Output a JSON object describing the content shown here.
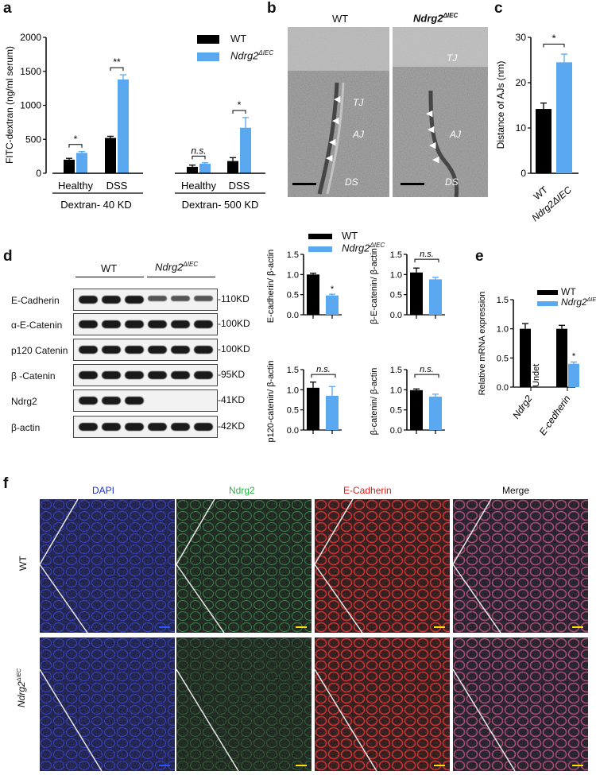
{
  "colors": {
    "wt": "#000000",
    "ko": "#5aa8f0",
    "dapi": "#1b2fd6",
    "ndrg2": "#27b341",
    "ecad": "#e01818",
    "merge": "#111111"
  },
  "panel_letters": {
    "a": "a",
    "b": "b",
    "c": "c",
    "d": "d",
    "e": "e",
    "f": "f"
  },
  "legend": {
    "wt": "WT",
    "ko_base": "Ndrg2",
    "ko_sup": "ΔIEC"
  },
  "chart_data": [
    {
      "id": "a",
      "type": "bar",
      "ylabel": "FITC-dextran (ng/ml serum)",
      "ylim": [
        0,
        2000
      ],
      "yticks": [
        0,
        500,
        1000,
        1500,
        2000
      ],
      "categories": [
        "Healthy",
        "DSS",
        "Healthy",
        "DSS"
      ],
      "groups": [
        "Dextran- 40 KD",
        "Dextran- 500 KD"
      ],
      "series": [
        {
          "name": "WT",
          "values": [
            200,
            520,
            95,
            180
          ],
          "errors": [
            20,
            25,
            25,
            50
          ]
        },
        {
          "name": "Ndrg2ΔIEC",
          "values": [
            300,
            1380,
            140,
            670
          ],
          "errors": [
            20,
            70,
            15,
            150
          ]
        }
      ],
      "significance": [
        "*",
        "**",
        "n.s.",
        "*"
      ]
    },
    {
      "id": "c",
      "type": "bar",
      "ylabel": "Distance of AJs (nm)",
      "ylim": [
        0,
        30
      ],
      "yticks": [
        0,
        10,
        20,
        30
      ],
      "categories": [
        "WT",
        "Ndrg2ΔIEC"
      ],
      "values": [
        14.2,
        24.5
      ],
      "errors": [
        1.3,
        1.8
      ],
      "significance": [
        "*"
      ]
    },
    {
      "id": "d1",
      "type": "bar",
      "ylabel": "E-cadherin/ β-actin",
      "ylim": [
        0,
        1.5
      ],
      "yticks": [
        "0.0",
        "0.5",
        "1.0",
        "1.5"
      ],
      "values": [
        1.0,
        0.48
      ],
      "errors": [
        0.03,
        0.03
      ],
      "significance": [
        "*"
      ]
    },
    {
      "id": "d2",
      "type": "bar",
      "ylabel": "β-E-catenin/ β-actin",
      "ylim": [
        0,
        1.5
      ],
      "yticks": [
        "0.0",
        "0.5",
        "1.0",
        "1.5"
      ],
      "values": [
        1.05,
        0.88
      ],
      "errors": [
        0.11,
        0.05
      ],
      "significance": [
        "n.s."
      ]
    },
    {
      "id": "d3",
      "type": "bar",
      "ylabel": "p120-catenin/ β-actin",
      "ylim": [
        0,
        1.5
      ],
      "yticks": [
        "0.0",
        "0.5",
        "1.0",
        "1.5"
      ],
      "values": [
        1.05,
        0.85
      ],
      "errors": [
        0.14,
        0.23
      ],
      "significance": [
        "n.s."
      ]
    },
    {
      "id": "d4",
      "type": "bar",
      "ylabel": "β-catenin/ β-actin",
      "ylim": [
        0,
        1.5
      ],
      "yticks": [
        "0.0",
        "0.5",
        "1.0",
        "1.5"
      ],
      "values": [
        0.99,
        0.83
      ],
      "errors": [
        0.03,
        0.06
      ],
      "significance": [
        "n.s."
      ]
    },
    {
      "id": "e",
      "type": "bar",
      "ylabel": "Relative mRNA expression",
      "ylim": [
        0,
        1.5
      ],
      "yticks": [
        "0.0",
        "0.5",
        "1.0",
        "1.5"
      ],
      "categories": [
        "Ndrg2",
        "E-cedherin"
      ],
      "series": [
        {
          "name": "WT",
          "values": [
            1.0,
            1.0
          ],
          "errors": [
            0.09,
            0.06
          ]
        },
        {
          "name": "Ndrg2ΔIEC",
          "values": [
            null,
            0.4
          ],
          "errors": [
            null,
            0.03
          ]
        }
      ],
      "annotations": [
        "Undet",
        "*"
      ]
    }
  ],
  "panel_b": {
    "wt_title": "WT",
    "ko_title": "Ndrg2",
    "ko_sup": "ΔIEC",
    "labels": [
      "TJ",
      "AJ",
      "DS",
      "TJ",
      "AJ",
      "DS"
    ]
  },
  "panel_d_blot": {
    "group_wt": "WT",
    "group_ko": "Ndrg2",
    "group_ko_sup": "ΔIEC",
    "rows": [
      {
        "protein": "E-Cadherin",
        "size": "110KD"
      },
      {
        "protein": "α-E-Catenin",
        "size": "100KD"
      },
      {
        "protein": "p120 Catenin",
        "size": "100KD"
      },
      {
        "protein": "β -Catenin",
        "size": "95KD"
      },
      {
        "protein": "Ndrg2",
        "size": "41KD"
      },
      {
        "protein": "β-actin",
        "size": "42KD"
      }
    ]
  },
  "panel_f": {
    "columns": [
      "DAPI",
      "Ndrg2",
      "E-Cadherin",
      "Merge"
    ],
    "rows": [
      "WT",
      "Ndrg2"
    ],
    "row_ko_sup": "ΔIEC"
  }
}
